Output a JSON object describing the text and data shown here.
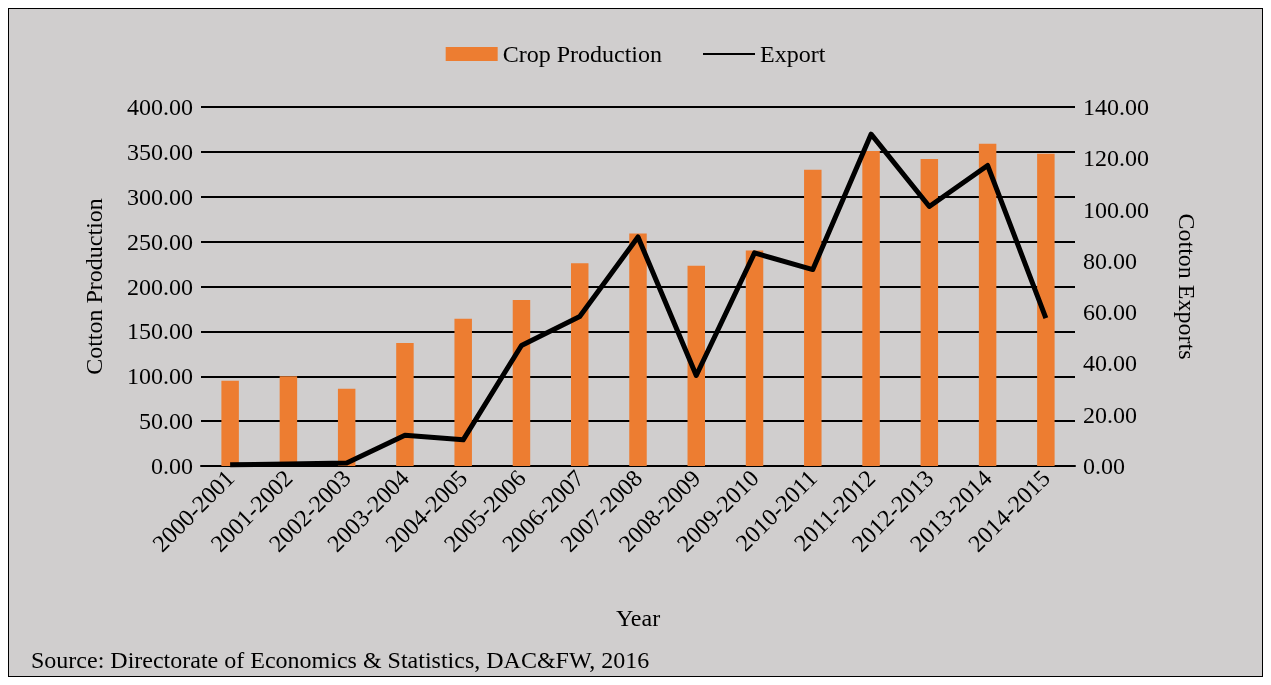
{
  "chart_data": {
    "type": "bar",
    "xlabel": "Year",
    "ylabel": "Cotton Production",
    "y2label": "Cotton Exports",
    "categories": [
      "2000-2001",
      "2001-2002",
      "2002-2003",
      "2003-2004",
      "2004-2005",
      "2005-2006",
      "2006-2007",
      "2007-2008",
      "2008-2009",
      "2009-2010",
      "2010-2011",
      "2011-2012",
      "2012-2013",
      "2013-2014",
      "2014-2015"
    ],
    "series": [
      {
        "name": "Crop Production",
        "color": "#ed7d31",
        "values": [
          95,
          100,
          86,
          137,
          164,
          185,
          226,
          259,
          223,
          240,
          330,
          351,
          342,
          359,
          348
        ]
      },
      {
        "name": "Export",
        "type": "line",
        "axis": "y2",
        "color": "#000000",
        "values": [
          0.5,
          0.8,
          1.2,
          12,
          10.2,
          47,
          58.3,
          89.3,
          35.3,
          83.1,
          76.6,
          129.4,
          101.2,
          117.2,
          57.7
        ]
      }
    ],
    "ylim": [
      0,
      400
    ],
    "yticks": [
      {
        "value": 0,
        "label": "0.00"
      },
      {
        "value": 50,
        "label": "50.00"
      },
      {
        "value": 100,
        "label": "100.00"
      },
      {
        "value": 150,
        "label": "150.00"
      },
      {
        "value": 200,
        "label": "200.00"
      },
      {
        "value": 250,
        "label": "250.00"
      },
      {
        "value": 300,
        "label": "300.00"
      },
      {
        "value": 350,
        "label": "350.00"
      },
      {
        "value": 400,
        "label": "400.00"
      }
    ],
    "y2lim": [
      0,
      140
    ],
    "y2ticks": [
      {
        "value": 0,
        "label": "0.00"
      },
      {
        "value": 20,
        "label": "20.00"
      },
      {
        "value": 40,
        "label": "40.00"
      },
      {
        "value": 60,
        "label": "60.00"
      },
      {
        "value": 80,
        "label": "80.00"
      },
      {
        "value": 100,
        "label": "100.00"
      },
      {
        "value": 120,
        "label": "120.00"
      },
      {
        "value": 140,
        "label": "140.00"
      }
    ],
    "grid": "y",
    "legend": "top",
    "marker": "none",
    "line_style": "solid",
    "annotations": [
      "Source: Directorate of Economics & Statistics, DAC&FW, 2016"
    ]
  }
}
